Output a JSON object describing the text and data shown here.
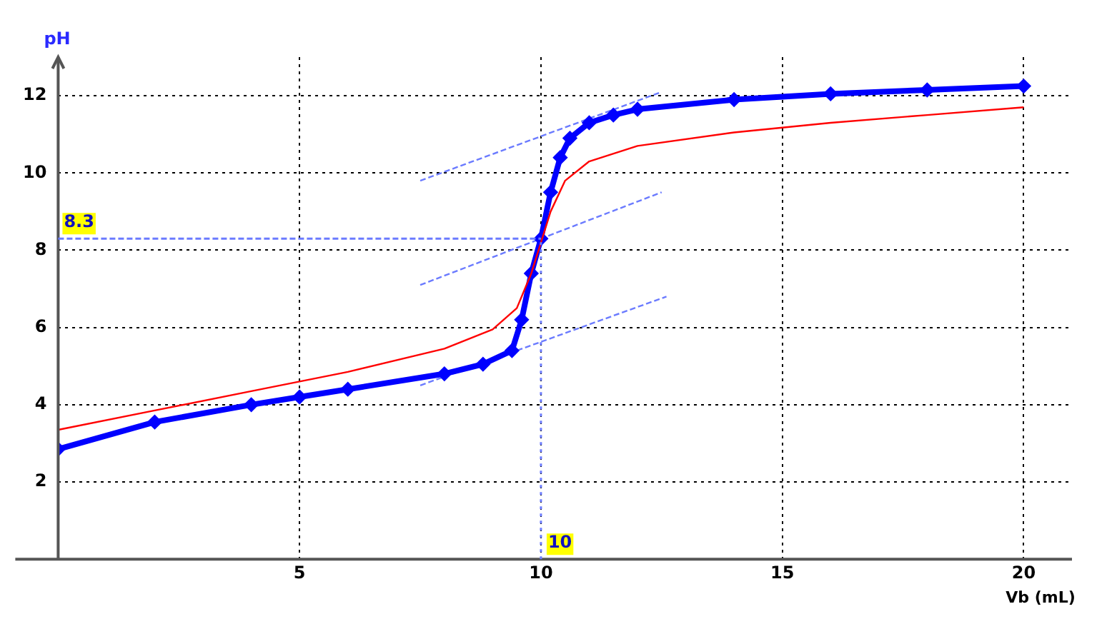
{
  "chart_data": {
    "type": "line",
    "xlabel": "Vb (mL)",
    "ylabel": "pH",
    "xlim": [
      0,
      21
    ],
    "ylim": [
      0,
      13
    ],
    "xticks": [
      5,
      10,
      15,
      20
    ],
    "yticks": [
      2,
      4,
      6,
      8,
      10,
      12
    ],
    "grid": true,
    "legend": false,
    "line_style": "solid",
    "series": [
      {
        "color": "#ff0000",
        "marker": "none",
        "x": [
          0,
          2,
          4,
          6,
          8,
          9,
          9.5,
          9.8,
          10,
          10.2,
          10.5,
          11,
          12,
          14,
          16,
          18,
          20
        ],
        "values": [
          3.35,
          3.85,
          4.35,
          4.85,
          5.45,
          5.95,
          6.5,
          7.4,
          8.2,
          9.0,
          9.8,
          10.3,
          10.7,
          11.05,
          11.3,
          11.5,
          11.7
        ]
      },
      {
        "color": "#0000ff",
        "marker": "diamond",
        "x": [
          0,
          2,
          4,
          5,
          6,
          8,
          8.8,
          9.4,
          9.6,
          9.8,
          10,
          10.2,
          10.4,
          10.6,
          11,
          11.5,
          12,
          14,
          16,
          18,
          20
        ],
        "values": [
          2.85,
          3.55,
          4.0,
          4.2,
          4.4,
          4.8,
          5.05,
          5.4,
          6.2,
          7.4,
          8.3,
          9.5,
          10.4,
          10.9,
          11.3,
          11.5,
          11.65,
          11.9,
          12.05,
          12.15,
          12.25
        ]
      },
      {
        "color": "#6b7bff",
        "marker": "none",
        "line_style": "dashed",
        "x": [
          7.5,
          12.6
        ],
        "values": [
          4.5,
          6.8
        ]
      },
      {
        "color": "#6b7bff",
        "marker": "none",
        "line_style": "dashed",
        "x": [
          7.5,
          12.5
        ],
        "values": [
          7.1,
          9.5
        ]
      },
      {
        "color": "#6b7bff",
        "marker": "none",
        "line_style": "dashed",
        "x": [
          7.5,
          12.5
        ],
        "values": [
          9.8,
          12.1
        ]
      }
    ],
    "ref_lines": [
      {
        "axis": "y",
        "value": 8.3,
        "label": "8.3",
        "color": "#6b7bff",
        "line_style": "dashed"
      },
      {
        "axis": "x",
        "value": 10,
        "label": "10",
        "color": "#6b7bff",
        "line_style": "dotted"
      }
    ]
  }
}
